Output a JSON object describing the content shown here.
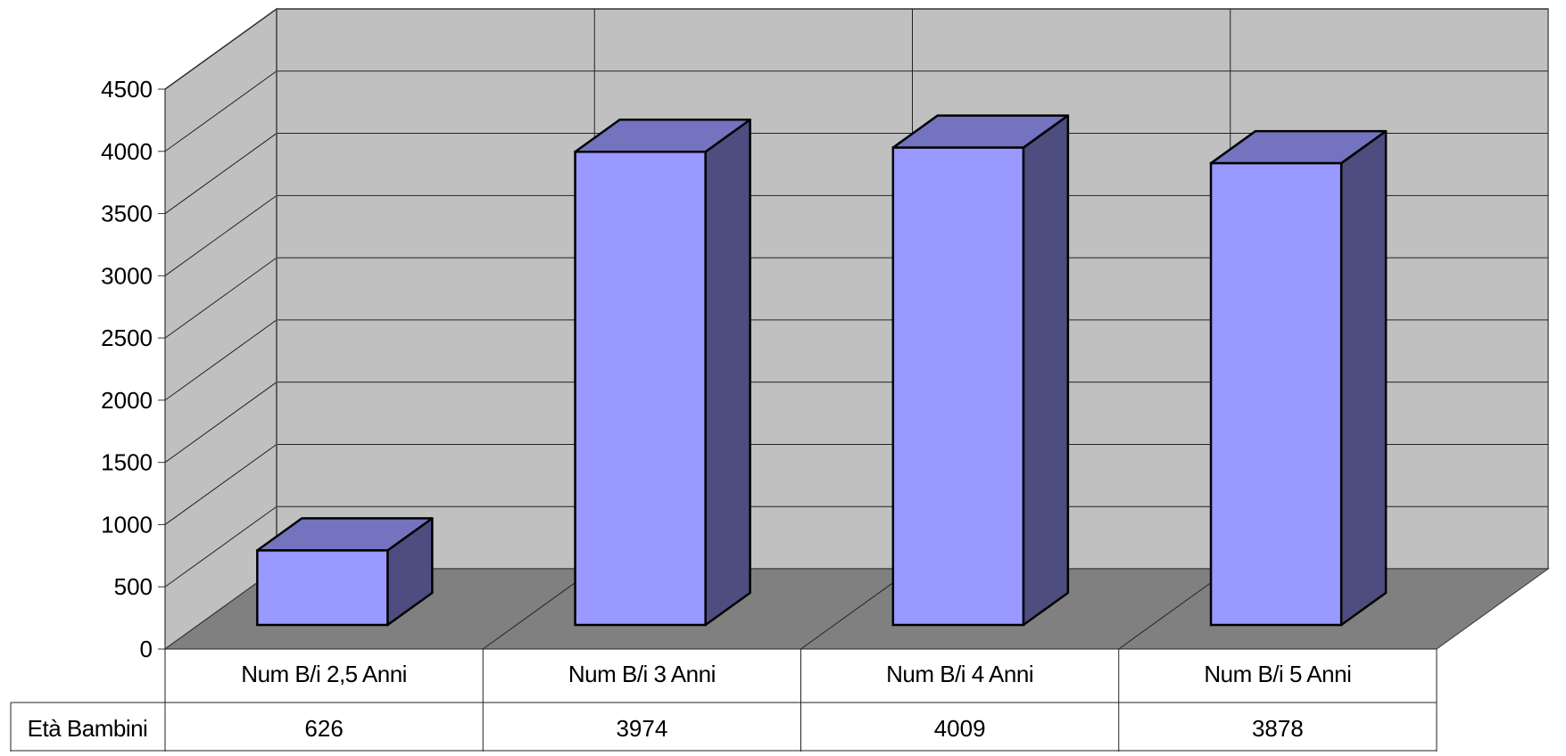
{
  "chart_data": {
    "type": "bar",
    "style": "3d-column",
    "title": "",
    "xlabel": "",
    "ylabel": "",
    "categories": [
      "Num B/i 2,5 Anni",
      "Num B/i 3 Anni",
      "Num B/i 4 Anni",
      "Num B/i 5 Anni"
    ],
    "series": [
      {
        "name": "Età Bambini",
        "values": [
          626,
          3974,
          4009,
          3878
        ]
      }
    ],
    "y_ticks": [
      "0",
      "500",
      "1000",
      "1500",
      "2000",
      "2500",
      "3000",
      "3500",
      "4000",
      "4500"
    ],
    "ylim": [
      0,
      4500
    ],
    "grid": true,
    "legend": "none",
    "data_table": true,
    "colors": {
      "bar_front": "#9999ff",
      "bar_top": "#7373bf",
      "bar_side": "#4d4d80",
      "wall": "#c0c0c0",
      "floor": "#808080"
    }
  }
}
